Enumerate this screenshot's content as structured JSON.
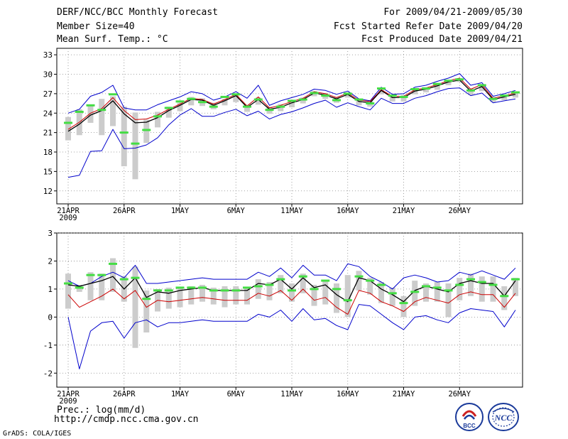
{
  "header": {
    "title": "DERF/NCC/BCC Monthly Forecast",
    "member_size": "Member Size=40",
    "variable": "Mean Surf. Temp.: °C",
    "period": "For 2009/04/21-2009/05/30",
    "started": "Fcst Started Refer Date 2009/04/20",
    "produced": "Fcst Produced Date 2009/04/21"
  },
  "footer": {
    "url": "http://cmdp.ncc.cma.gov.cn",
    "credit": "GrADS: COLA/IGES",
    "logo_left_text": "BCC",
    "logo_right_text": "NCC"
  },
  "colors": {
    "ensemble_mean": "#000000",
    "median": "#cc0000",
    "envelope": "#0000cc",
    "box": "#cccccc",
    "marker": "#44dd44",
    "grid": "#888888"
  },
  "chart_data": [
    {
      "type": "line",
      "title": "Mean Surf. Temp.: °C",
      "xlabel": "",
      "ylabel": "",
      "x_ticks": [
        "21APR",
        "26APR",
        "1MAY",
        "6MAY",
        "11MAY",
        "16MAY",
        "21MAY",
        "26MAY"
      ],
      "x_tick_days": [
        0,
        5,
        10,
        15,
        20,
        25,
        30,
        35
      ],
      "year_label": "2009",
      "ylim": [
        10,
        34
      ],
      "y_ticks": [
        12,
        15,
        18,
        21,
        24,
        27,
        30,
        33
      ],
      "series": [
        {
          "name": "max",
          "values": [
            24.0,
            24.6,
            26.6,
            27.2,
            28.3,
            24.8,
            24.5,
            24.5,
            25.3,
            25.9,
            26.5,
            27.3,
            27.0,
            26.0,
            26.5,
            27.3,
            26.3,
            28.3,
            25.2,
            25.9,
            26.4,
            26.9,
            27.7,
            27.5,
            26.9,
            27.4,
            26.2,
            25.9,
            28.0,
            26.9,
            27.0,
            28.0,
            28.3,
            28.9,
            29.4,
            30.1,
            28.3,
            28.7,
            26.6,
            27.0,
            27.5
          ]
        },
        {
          "name": "mean",
          "values": [
            21.2,
            22.3,
            23.7,
            24.4,
            25.9,
            23.9,
            22.5,
            22.6,
            23.3,
            24.4,
            25.2,
            26.1,
            26.0,
            25.2,
            25.9,
            26.7,
            24.9,
            26.1,
            24.6,
            24.9,
            25.6,
            26.1,
            27.1,
            26.8,
            26.2,
            26.9,
            25.8,
            25.6,
            27.5,
            26.4,
            26.4,
            27.4,
            27.7,
            28.2,
            28.8,
            29.1,
            27.4,
            28.1,
            26.1,
            26.5,
            26.9
          ]
        },
        {
          "name": "median",
          "values": [
            21.5,
            22.6,
            24.0,
            24.7,
            26.4,
            24.4,
            23.0,
            23.1,
            23.7,
            24.6,
            25.4,
            26.3,
            26.1,
            25.4,
            26.1,
            26.9,
            25.1,
            26.5,
            24.8,
            25.2,
            25.8,
            26.3,
            27.3,
            27.0,
            26.4,
            27.1,
            26.0,
            25.8,
            27.6,
            26.6,
            26.6,
            27.6,
            27.9,
            28.4,
            29.0,
            29.4,
            27.7,
            28.4,
            26.3,
            26.7,
            27.1
          ]
        },
        {
          "name": "min",
          "values": [
            14.1,
            14.4,
            18.1,
            18.2,
            21.5,
            18.5,
            18.6,
            19.1,
            20.2,
            22.2,
            23.7,
            24.7,
            23.5,
            23.5,
            24.1,
            24.6,
            23.6,
            24.3,
            23.1,
            23.8,
            24.2,
            24.8,
            25.5,
            26.0,
            24.9,
            25.6,
            25.0,
            24.5,
            26.3,
            25.5,
            25.5,
            26.3,
            26.7,
            27.3,
            27.8,
            27.9,
            26.7,
            27.1,
            25.6,
            25.9,
            26.2
          ]
        },
        {
          "name": "box_high",
          "values": [
            23.4,
            24.6,
            25.1,
            26.2,
            26.6,
            25.0,
            24.1,
            23.0,
            24.2,
            25.0,
            25.6,
            26.5,
            26.3,
            25.6,
            26.2,
            27.0,
            25.3,
            26.4,
            25.0,
            25.4,
            25.9,
            26.4,
            27.4,
            27.1,
            26.5,
            27.2,
            26.2,
            26.0,
            27.7,
            26.8,
            26.8,
            27.7,
            28.0,
            28.5,
            29.1,
            29.4,
            27.8,
            28.5,
            26.5,
            26.8,
            27.3
          ]
        },
        {
          "name": "box_low",
          "values": [
            19.8,
            20.6,
            22.5,
            20.6,
            22.0,
            15.8,
            13.8,
            19.4,
            21.8,
            23.3,
            24.3,
            25.2,
            25.1,
            24.6,
            25.2,
            25.7,
            24.2,
            25.3,
            23.9,
            24.3,
            24.9,
            25.5,
            26.6,
            26.2,
            25.6,
            26.4,
            25.2,
            25.0,
            26.9,
            25.8,
            25.8,
            26.9,
            27.2,
            27.6,
            28.3,
            28.8,
            26.8,
            27.4,
            25.7,
            26.0,
            26.4
          ]
        },
        {
          "name": "marker",
          "values": [
            22.5,
            24.2,
            25.2,
            24.5,
            26.9,
            21.0,
            19.3,
            21.4,
            23.5,
            24.8,
            25.8,
            26.2,
            25.7,
            25.0,
            26.5,
            26.9,
            25.0,
            26.1,
            24.5,
            25.0,
            25.9,
            26.1,
            27.1,
            26.7,
            26.0,
            27.0,
            26.1,
            25.5,
            27.8,
            26.7,
            26.5,
            27.7,
            27.8,
            28.5,
            29.0,
            29.2,
            27.5,
            28.3,
            26.2,
            26.7,
            27.2
          ]
        }
      ]
    },
    {
      "type": "line",
      "title": "Prec.: log(mm/d)",
      "xlabel": "",
      "ylabel": "",
      "x_ticks": [
        "21APR",
        "26APR",
        "1MAY",
        "6MAY",
        "11MAY",
        "16MAY",
        "21MAY",
        "26MAY"
      ],
      "x_tick_days": [
        0,
        5,
        10,
        15,
        20,
        25,
        30,
        35
      ],
      "year_label": "2009",
      "ylim": [
        -2.5,
        3
      ],
      "y_ticks": [
        -2,
        -1,
        0,
        1,
        2,
        3
      ],
      "series": [
        {
          "name": "max",
          "values": [
            1.3,
            1.1,
            1.2,
            1.45,
            1.6,
            1.4,
            1.85,
            1.2,
            1.2,
            1.25,
            1.3,
            1.35,
            1.4,
            1.35,
            1.35,
            1.35,
            1.35,
            1.6,
            1.45,
            1.75,
            1.4,
            1.85,
            1.5,
            1.5,
            1.3,
            1.9,
            1.8,
            1.45,
            1.25,
            1.0,
            1.4,
            1.5,
            1.4,
            1.25,
            1.3,
            1.6,
            1.5,
            1.65,
            1.5,
            1.35,
            1.75
          ]
        },
        {
          "name": "mean",
          "values": [
            1.15,
            1.1,
            1.2,
            1.3,
            1.45,
            1.0,
            1.4,
            0.7,
            0.9,
            0.85,
            0.95,
            1.0,
            1.05,
            0.95,
            0.95,
            0.95,
            0.95,
            1.2,
            1.15,
            1.35,
            1.0,
            1.4,
            1.05,
            1.15,
            0.8,
            0.55,
            1.4,
            1.3,
            1.0,
            0.8,
            0.55,
            0.95,
            1.1,
            1.0,
            0.9,
            1.2,
            1.3,
            1.2,
            1.2,
            0.75,
            1.3
          ]
        },
        {
          "name": "median",
          "values": [
            0.8,
            0.35,
            0.55,
            0.75,
            1.0,
            0.65,
            0.95,
            0.35,
            0.6,
            0.55,
            0.6,
            0.65,
            0.7,
            0.65,
            0.6,
            0.6,
            0.6,
            0.85,
            0.75,
            0.95,
            0.6,
            1.0,
            0.6,
            0.7,
            0.35,
            0.1,
            0.95,
            0.85,
            0.55,
            0.4,
            0.2,
            0.55,
            0.7,
            0.6,
            0.5,
            0.8,
            0.9,
            0.8,
            0.8,
            0.35,
            0.85
          ]
        },
        {
          "name": "min",
          "values": [
            0.0,
            -1.85,
            -0.5,
            -0.2,
            -0.15,
            -0.75,
            -0.2,
            -0.1,
            -0.35,
            -0.2,
            -0.2,
            -0.15,
            -0.1,
            -0.15,
            -0.15,
            -0.15,
            -0.15,
            0.1,
            0.0,
            0.25,
            -0.15,
            0.3,
            -0.1,
            -0.05,
            -0.3,
            -0.45,
            0.45,
            0.4,
            0.1,
            -0.2,
            -0.45,
            0.0,
            0.05,
            -0.1,
            -0.2,
            0.15,
            0.3,
            0.25,
            0.2,
            -0.35,
            0.25
          ]
        },
        {
          "name": "box_high",
          "values": [
            1.55,
            1.15,
            1.6,
            1.55,
            2.1,
            1.45,
            1.8,
            0.95,
            1.0,
            1.05,
            1.05,
            1.1,
            1.15,
            1.05,
            1.1,
            1.1,
            1.05,
            1.35,
            1.25,
            1.5,
            1.2,
            1.55,
            1.15,
            1.3,
            1.2,
            1.5,
            1.65,
            1.4,
            1.25,
            1.05,
            0.75,
            1.3,
            1.2,
            1.25,
            1.2,
            1.4,
            1.55,
            1.45,
            1.45,
            1.1,
            1.4
          ]
        },
        {
          "name": "box_low",
          "values": [
            0.3,
            0.9,
            0.6,
            0.6,
            0.9,
            0.55,
            -1.1,
            -0.55,
            0.2,
            0.3,
            0.35,
            0.45,
            0.55,
            0.45,
            0.35,
            0.45,
            0.45,
            0.65,
            0.6,
            0.85,
            0.55,
            0.85,
            0.4,
            0.45,
            0.15,
            0.0,
            0.95,
            0.8,
            0.5,
            0.4,
            0.0,
            0.4,
            0.55,
            0.55,
            0.0,
            0.6,
            0.75,
            0.55,
            0.55,
            0.25,
            0.75
          ]
        },
        {
          "name": "marker",
          "values": [
            1.2,
            1.05,
            1.5,
            1.5,
            1.9,
            1.35,
            1.4,
            0.65,
            0.95,
            0.95,
            1.05,
            1.05,
            1.05,
            0.95,
            0.95,
            0.95,
            1.05,
            1.1,
            1.15,
            1.35,
            0.95,
            1.45,
            1.0,
            1.3,
            1.0,
            0.6,
            1.45,
            1.3,
            1.15,
            0.85,
            0.5,
            0.9,
            1.1,
            1.05,
            0.95,
            1.15,
            1.35,
            1.25,
            1.15,
            0.75,
            1.35
          ]
        }
      ]
    }
  ]
}
